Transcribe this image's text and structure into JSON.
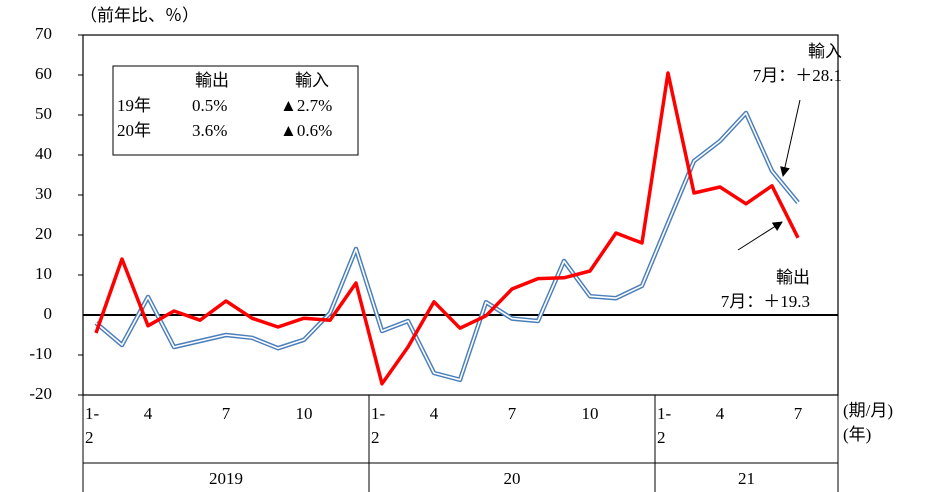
{
  "chart_data": {
    "type": "line",
    "unit_label": "（前年比、％）",
    "x_unit_label": "(期/月)",
    "group_unit_label": "(年)",
    "categories": [
      "1-\n2",
      null,
      "4",
      null,
      null,
      "7",
      null,
      null,
      "10",
      null,
      null,
      "1-\n2",
      null,
      "4",
      null,
      null,
      "7",
      null,
      null,
      "10",
      null,
      null,
      "1-\n2",
      null,
      "4",
      null,
      null,
      "7"
    ],
    "groups": [
      "2019",
      "20",
      "21"
    ],
    "series": [
      {
        "name": "輸出",
        "color": "#ff0000",
        "values": [
          -4.5,
          14,
          -2.7,
          1,
          -1.3,
          3.5,
          -0.8,
          -3,
          -0.8,
          -1.3,
          8,
          -17.2,
          -8,
          3.3,
          -3.3,
          -0.2,
          6.5,
          9.1,
          9.3,
          11,
          20.5,
          18,
          60.5,
          30.5,
          32,
          27.8,
          32.3,
          19.3
        ]
      },
      {
        "name": "輸入",
        "color": "#4a7ebb",
        "values": [
          -2,
          -7.5,
          4.5,
          -8,
          -6.5,
          -5,
          -5.7,
          -8.3,
          -6.2,
          0.5,
          16.5,
          -4,
          -1.5,
          -14.5,
          -16.2,
          3.2,
          -0.9,
          -1.5,
          13.5,
          4.7,
          4.2,
          7.3,
          23,
          38.5,
          43.5,
          50.5,
          36,
          28.1
        ]
      }
    ],
    "ylim": [
      -20,
      70
    ],
    "yticks": [
      -20,
      -10,
      0,
      10,
      20,
      30,
      40,
      50,
      60,
      70
    ],
    "table": {
      "header": [
        "輸出",
        "輸入"
      ],
      "rows": [
        [
          "19年",
          "0.5%",
          "▲2.7%"
        ],
        [
          "20年",
          "3.6%",
          "▲0.6%"
        ]
      ]
    },
    "annotations": [
      "輸入\n7月：＋28.1",
      "輸出\n7月：＋19.3"
    ]
  }
}
